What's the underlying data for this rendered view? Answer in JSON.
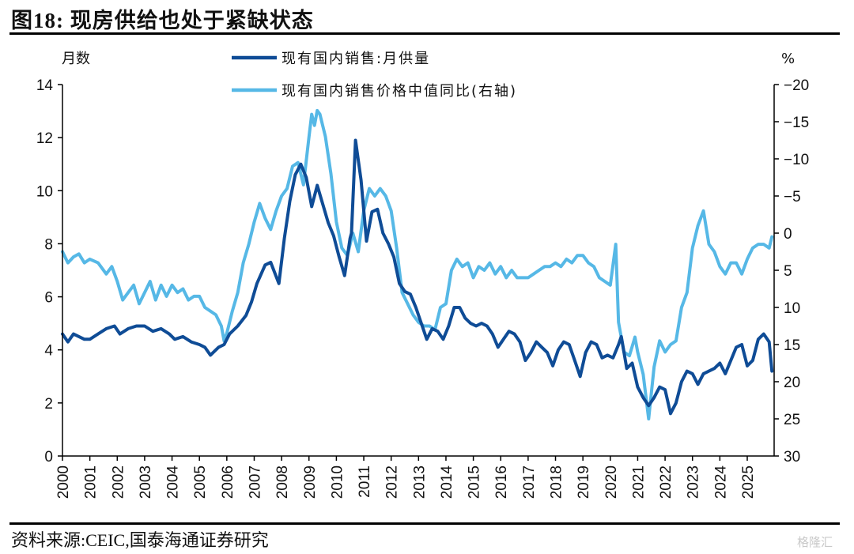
{
  "header": {
    "title": "图18:  现房供给也处于紧缺状态"
  },
  "footer": {
    "source": "资料来源:CEIC,国泰海通证券研究",
    "watermark": "格隆汇"
  },
  "colors": {
    "supply": "#0F4C96",
    "price": "#56B8E6",
    "axis": "#000000"
  },
  "chart_data": {
    "type": "line",
    "title": "现房供给也处于紧缺状态",
    "left_axis": {
      "label": "月数",
      "ylim": [
        0,
        14
      ],
      "ticks": [
        "0",
        "2",
        "4",
        "6",
        "8",
        "10",
        "12",
        "14"
      ],
      "tick_values": [
        0,
        2,
        4,
        6,
        8,
        10,
        12,
        14
      ]
    },
    "right_axis": {
      "label": "%",
      "ylim": [
        -20,
        30
      ],
      "inverted": true,
      "ticks": [
        "−20",
        "−15",
        "−10",
        "−5",
        "0",
        "5",
        "10",
        "15",
        "20",
        "25",
        "30"
      ],
      "tick_values": [
        -20,
        -15,
        -10,
        -5,
        0,
        5,
        10,
        15,
        20,
        25,
        30
      ]
    },
    "x_axis": {
      "xlim": [
        2000,
        2025.9
      ],
      "ticks": [
        "2000",
        "2001",
        "2002",
        "2003",
        "2004",
        "2005",
        "2006",
        "2007",
        "2008",
        "2009",
        "2010",
        "2011",
        "2012",
        "2013",
        "2014",
        "2015",
        "2016",
        "2017",
        "2018",
        "2019",
        "2020",
        "2021",
        "2022",
        "2023",
        "2024",
        "2025"
      ],
      "tick_values": [
        2000,
        2001,
        2002,
        2003,
        2004,
        2005,
        2006,
        2007,
        2008,
        2009,
        2010,
        2011,
        2012,
        2013,
        2014,
        2015,
        2016,
        2017,
        2018,
        2019,
        2020,
        2021,
        2022,
        2023,
        2024,
        2025
      ]
    },
    "legend_position": "top-center",
    "grid": false,
    "series": [
      {
        "name": "现有国内销售:月供量",
        "axis": "left",
        "x": [
          2000.0,
          2000.2,
          2000.4,
          2000.6,
          2000.8,
          2001.0,
          2001.3,
          2001.6,
          2001.9,
          2002.1,
          2002.4,
          2002.7,
          2003.0,
          2003.3,
          2003.6,
          2003.9,
          2004.1,
          2004.4,
          2004.7,
          2005.0,
          2005.2,
          2005.4,
          2005.7,
          2005.9,
          2006.1,
          2006.4,
          2006.7,
          2006.9,
          2007.1,
          2007.4,
          2007.6,
          2007.9,
          2008.1,
          2008.3,
          2008.5,
          2008.7,
          2008.9,
          2009.1,
          2009.3,
          2009.5,
          2009.7,
          2009.9,
          2010.1,
          2010.3,
          2010.5,
          2010.55,
          2010.7,
          2010.9,
          2011.1,
          2011.3,
          2011.5,
          2011.7,
          2011.9,
          2012.1,
          2012.3,
          2012.5,
          2012.7,
          2012.9,
          2013.1,
          2013.3,
          2013.5,
          2013.7,
          2013.9,
          2014.1,
          2014.3,
          2014.5,
          2014.7,
          2014.9,
          2015.1,
          2015.3,
          2015.5,
          2015.7,
          2015.9,
          2016.1,
          2016.3,
          2016.5,
          2016.7,
          2016.9,
          2017.1,
          2017.3,
          2017.5,
          2017.7,
          2017.9,
          2018.1,
          2018.3,
          2018.5,
          2018.7,
          2018.9,
          2019.1,
          2019.3,
          2019.5,
          2019.7,
          2019.9,
          2020.1,
          2020.3,
          2020.4,
          2020.6,
          2020.8,
          2021.0,
          2021.2,
          2021.4,
          2021.6,
          2021.8,
          2022.0,
          2022.2,
          2022.4,
          2022.6,
          2022.8,
          2023.0,
          2023.2,
          2023.4,
          2023.6,
          2023.8,
          2024.0,
          2024.2,
          2024.4,
          2024.6,
          2024.8,
          2025.0,
          2025.2,
          2025.4,
          2025.6,
          2025.8,
          2025.9
        ],
        "values": [
          4.6,
          4.3,
          4.6,
          4.5,
          4.4,
          4.4,
          4.6,
          4.8,
          4.9,
          4.6,
          4.8,
          4.9,
          4.9,
          4.7,
          4.8,
          4.6,
          4.4,
          4.5,
          4.3,
          4.2,
          4.1,
          3.8,
          4.1,
          4.2,
          4.6,
          4.9,
          5.3,
          5.8,
          6.5,
          7.2,
          7.3,
          6.5,
          8.2,
          9.6,
          10.6,
          11.0,
          10.5,
          9.4,
          10.2,
          9.5,
          8.8,
          8.3,
          7.5,
          6.8,
          8.2,
          8.4,
          11.9,
          10.4,
          8.1,
          9.2,
          9.3,
          8.4,
          8.0,
          7.5,
          6.5,
          6.2,
          6.1,
          5.6,
          5.0,
          4.4,
          4.8,
          4.7,
          4.4,
          4.9,
          5.6,
          5.6,
          5.2,
          5.0,
          4.9,
          5.0,
          4.9,
          4.6,
          4.1,
          4.4,
          4.7,
          4.6,
          4.3,
          3.6,
          3.9,
          4.3,
          4.1,
          3.9,
          3.4,
          4.0,
          4.3,
          4.2,
          3.6,
          3.0,
          3.9,
          4.3,
          4.2,
          3.7,
          3.8,
          3.7,
          4.2,
          4.5,
          3.3,
          3.5,
          2.6,
          2.2,
          1.9,
          2.2,
          2.6,
          2.5,
          1.6,
          2.0,
          2.8,
          3.2,
          3.1,
          2.7,
          3.1,
          3.2,
          3.3,
          3.5,
          3.1,
          3.6,
          4.1,
          4.2,
          3.4,
          3.6,
          4.4,
          4.6,
          4.3,
          3.2
        ]
      },
      {
        "name": "现有国内销售价格中值同比(右轴)",
        "axis": "right",
        "x": [
          2000.0,
          2000.2,
          2000.4,
          2000.6,
          2000.8,
          2001.0,
          2001.3,
          2001.6,
          2001.8,
          2002.0,
          2002.2,
          2002.4,
          2002.6,
          2002.8,
          2003.0,
          2003.2,
          2003.4,
          2003.6,
          2003.8,
          2004.0,
          2004.2,
          2004.4,
          2004.6,
          2004.8,
          2005.0,
          2005.2,
          2005.4,
          2005.6,
          2005.8,
          2005.9,
          2006.0,
          2006.2,
          2006.4,
          2006.6,
          2006.8,
          2007.0,
          2007.2,
          2007.4,
          2007.6,
          2007.8,
          2008.0,
          2008.2,
          2008.4,
          2008.6,
          2008.8,
          2009.0,
          2009.1,
          2009.2,
          2009.3,
          2009.4,
          2009.6,
          2009.8,
          2010.0,
          2010.2,
          2010.4,
          2010.6,
          2010.8,
          2011.0,
          2011.2,
          2011.4,
          2011.6,
          2011.8,
          2012.0,
          2012.2,
          2012.4,
          2012.6,
          2012.8,
          2013.0,
          2013.2,
          2013.4,
          2013.6,
          2013.8,
          2014.0,
          2014.2,
          2014.4,
          2014.6,
          2014.8,
          2015.0,
          2015.2,
          2015.4,
          2015.6,
          2015.8,
          2016.0,
          2016.2,
          2016.4,
          2016.6,
          2016.8,
          2017.0,
          2017.2,
          2017.4,
          2017.6,
          2017.8,
          2018.0,
          2018.2,
          2018.4,
          2018.6,
          2018.8,
          2019.0,
          2019.2,
          2019.4,
          2019.6,
          2019.8,
          2020.0,
          2020.2,
          2020.3,
          2020.5,
          2020.7,
          2020.9,
          2021.0,
          2021.2,
          2021.4,
          2021.6,
          2021.8,
          2022.0,
          2022.2,
          2022.4,
          2022.6,
          2022.8,
          2023.0,
          2023.2,
          2023.4,
          2023.6,
          2023.8,
          2024.0,
          2024.2,
          2024.4,
          2024.6,
          2024.8,
          2025.0,
          2025.2,
          2025.4,
          2025.6,
          2025.8,
          2025.9
        ],
        "values": [
          2.5,
          4.0,
          3.2,
          2.8,
          4.0,
          3.5,
          4.0,
          5.5,
          4.5,
          6.5,
          9.0,
          8.0,
          7.0,
          9.5,
          8.0,
          6.5,
          9.0,
          7.0,
          8.5,
          7.0,
          8.0,
          7.5,
          9.0,
          8.5,
          8.5,
          10.0,
          10.5,
          11.0,
          12.5,
          14.5,
          13.5,
          10.5,
          8.0,
          4.0,
          1.5,
          -1.5,
          -4.0,
          -2.0,
          -0.5,
          -3.0,
          -5.0,
          -6.0,
          -9.0,
          -9.5,
          -6.5,
          -13.0,
          -16.0,
          -14.5,
          -16.5,
          -16.0,
          -13.0,
          -8.0,
          -1.5,
          2.0,
          3.0,
          0.0,
          2.5,
          -3.0,
          -6.0,
          -5.0,
          -6.0,
          -5.0,
          -3.0,
          2.0,
          8.0,
          9.5,
          11.0,
          12.0,
          12.5,
          12.5,
          13.0,
          10.0,
          9.5,
          5.0,
          3.5,
          4.5,
          4.0,
          6.0,
          4.5,
          5.0,
          4.0,
          5.5,
          4.5,
          6.0,
          5.0,
          6.0,
          6.0,
          6.0,
          5.5,
          5.0,
          4.5,
          4.5,
          4.0,
          4.5,
          3.5,
          4.0,
          3.0,
          3.0,
          4.0,
          4.5,
          6.0,
          6.5,
          7.0,
          1.5,
          12.0,
          16.0,
          16.5,
          14.0,
          16.0,
          19.0,
          25.0,
          18.0,
          14.5,
          16.0,
          15.0,
          14.5,
          10.0,
          8.0,
          2.0,
          -1.0,
          -3.0,
          1.5,
          2.5,
          4.5,
          5.5,
          4.0,
          4.0,
          5.5,
          3.5,
          2.0,
          1.5,
          1.5,
          2.0,
          0.5
        ]
      }
    ]
  }
}
